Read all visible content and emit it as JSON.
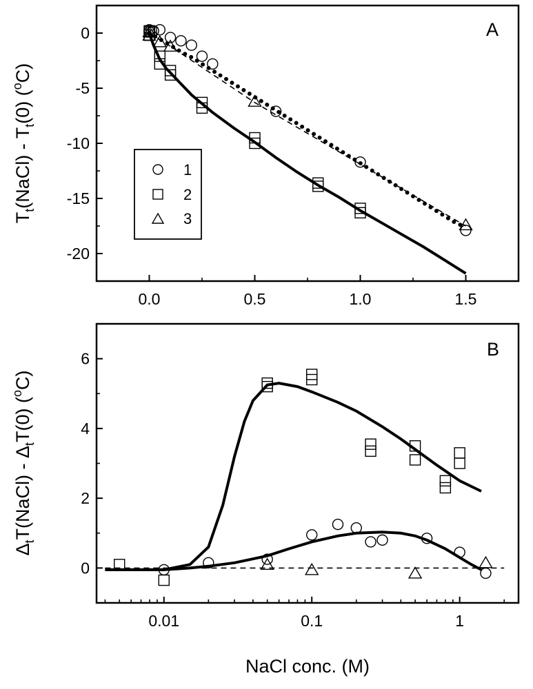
{
  "chart_data": [
    {
      "panel": "A",
      "type": "scatter",
      "ylabel": "Tt(NaCl) - Tt(0)  (oC)",
      "ylabel_parts": {
        "T1": "T",
        "s1": "t",
        "mid": "(NaCl) - T",
        "s2": "t",
        "end": "(0)  (",
        "deg": "o",
        "unit": "C)"
      },
      "xlim": [
        -0.25,
        1.75
      ],
      "ylim": [
        -22.5,
        2.5
      ],
      "x_ticks": [
        0.0,
        0.5,
        1.0,
        1.5
      ],
      "x_tick_labels": [
        "0.0",
        "0.5",
        "1.0",
        "1.5"
      ],
      "y_ticks": [
        0,
        -5,
        -10,
        -15,
        -20
      ],
      "y_tick_labels": [
        "0",
        "-5",
        "-10",
        "-15",
        "-20"
      ],
      "legend": [
        {
          "marker": "circle",
          "label": "1"
        },
        {
          "marker": "square",
          "label": "2"
        },
        {
          "marker": "triangle",
          "label": "3"
        }
      ],
      "series": [
        {
          "name": "1",
          "marker": "circle",
          "x": [
            0,
            0,
            0.02,
            0.05,
            0.1,
            0.15,
            0.2,
            0.25,
            0.3,
            0.6,
            1.0,
            1.5
          ],
          "y": [
            0.3,
            0.1,
            0.2,
            0.3,
            -0.4,
            -0.7,
            -1.1,
            -2.1,
            -2.8,
            -7.1,
            -11.7,
            -17.9
          ]
        },
        {
          "name": "2",
          "marker": "square",
          "x": [
            0,
            0,
            0.01,
            0.05,
            0.05,
            0.1,
            0.1,
            0.25,
            0.25,
            0.5,
            0.5,
            0.8,
            0.8,
            1.0,
            1.0
          ],
          "y": [
            0.2,
            -0.2,
            0.1,
            -2.1,
            -2.8,
            -3.4,
            -3.8,
            -6.3,
            -6.8,
            -9.5,
            -10.0,
            -13.6,
            -13.9,
            -15.9,
            -16.3
          ]
        },
        {
          "name": "3",
          "marker": "triangle",
          "x": [
            0,
            0,
            0.05,
            0.1,
            0.5,
            1.5
          ],
          "y": [
            0.1,
            -0.2,
            -0.8,
            -1.2,
            -6.2,
            -17.4
          ]
        }
      ],
      "fits": [
        {
          "name": "fit-1",
          "style": "dotted",
          "x": [
            0,
            0.05,
            0.1,
            0.15,
            0.2,
            0.25,
            0.3,
            0.35,
            0.4,
            0.45,
            0.5,
            0.55,
            0.6,
            0.65,
            0.7,
            0.75,
            0.8,
            0.85,
            0.9,
            0.95,
            1.0,
            1.05,
            1.1,
            1.15,
            1.2,
            1.25,
            1.3,
            1.35,
            1.4,
            1.45,
            1.5
          ],
          "y": [
            0,
            -0.55,
            -1.1,
            -1.7,
            -2.2,
            -2.8,
            -3.4,
            -4.0,
            -4.6,
            -5.2,
            -5.8,
            -6.4,
            -7.0,
            -7.6,
            -8.2,
            -8.8,
            -9.4,
            -10.0,
            -10.6,
            -11.2,
            -11.8,
            -12.4,
            -13.0,
            -13.6,
            -14.2,
            -14.8,
            -15.4,
            -16.0,
            -16.6,
            -17.2,
            -17.6
          ]
        },
        {
          "name": "fit-3",
          "style": "dashed",
          "x": [
            0,
            0.1,
            0.5,
            1.0,
            1.5
          ],
          "y": [
            0,
            -1.2,
            -6.3,
            -11.9,
            -17.5
          ]
        },
        {
          "name": "fit-2",
          "style": "solid",
          "x": [
            0,
            0.02,
            0.05,
            0.08,
            0.1,
            0.15,
            0.2,
            0.3,
            0.4,
            0.5,
            0.6,
            0.7,
            0.8,
            0.9,
            1.0,
            1.1,
            1.2,
            1.3,
            1.4,
            1.5
          ],
          "y": [
            0,
            -1.1,
            -2.4,
            -3.2,
            -3.6,
            -4.6,
            -5.6,
            -7.2,
            -8.6,
            -9.9,
            -11.3,
            -12.6,
            -13.8,
            -14.9,
            -16.1,
            -17.2,
            -18.3,
            -19.4,
            -20.6,
            -21.8
          ]
        }
      ],
      "annotation": "A"
    },
    {
      "panel": "B",
      "type": "scatter",
      "xscale": "log",
      "xlabel": "NaCl conc. (M)",
      "ylabel": "ΔtT(NaCl) - ΔtT(0)  (oC)",
      "ylabel_parts": {
        "D1": "Δ",
        "s1": "t",
        "mid": "T(NaCl) - Δ",
        "s2": "t",
        "end": "T(0)  (",
        "deg": "o",
        "unit": "C)"
      },
      "xlim": [
        0.0035,
        2.5
      ],
      "ylim": [
        -1,
        7
      ],
      "x_ticks": [
        0.01,
        0.1,
        1
      ],
      "x_tick_labels": [
        "0.01",
        "0.1",
        "1"
      ],
      "y_ticks": [
        0,
        2,
        4,
        6
      ],
      "y_tick_labels": [
        "0",
        "2",
        "4",
        "6"
      ],
      "series": [
        {
          "name": "1",
          "marker": "circle",
          "x": [
            0.01,
            0.02,
            0.05,
            0.1,
            0.15,
            0.2,
            0.25,
            0.3,
            0.6,
            1.0,
            1.5
          ],
          "y": [
            -0.05,
            0.15,
            0.25,
            0.95,
            1.25,
            1.15,
            0.75,
            0.8,
            0.85,
            0.45,
            -0.15
          ]
        },
        {
          "name": "2",
          "marker": "square",
          "x": [
            0.005,
            0.01,
            0.05,
            0.05,
            0.1,
            0.1,
            0.25,
            0.25,
            0.5,
            0.5,
            0.8,
            0.8,
            1.0,
            1.0
          ],
          "y": [
            0.1,
            -0.35,
            5.2,
            5.3,
            5.4,
            5.55,
            3.35,
            3.55,
            3.1,
            3.5,
            2.3,
            2.5,
            3.0,
            3.3
          ]
        },
        {
          "name": "3",
          "marker": "triangle",
          "x": [
            0.05,
            0.1,
            0.5,
            1.5
          ],
          "y": [
            0.1,
            -0.05,
            -0.15,
            0.15
          ]
        }
      ],
      "fits": [
        {
          "name": "baseline",
          "style": "dashed",
          "x": [
            0.004,
            2.0
          ],
          "y": [
            0,
            0
          ]
        },
        {
          "name": "fit-2",
          "style": "solid",
          "x": [
            0.004,
            0.01,
            0.015,
            0.02,
            0.025,
            0.03,
            0.035,
            0.04,
            0.05,
            0.06,
            0.08,
            0.1,
            0.15,
            0.2,
            0.3,
            0.4,
            0.5,
            0.7,
            1.0,
            1.4
          ],
          "y": [
            -0.05,
            -0.05,
            0.1,
            0.6,
            1.8,
            3.2,
            4.2,
            4.8,
            5.25,
            5.3,
            5.2,
            5.05,
            4.75,
            4.5,
            4.05,
            3.7,
            3.4,
            2.95,
            2.5,
            2.2
          ]
        },
        {
          "name": "fit-1",
          "style": "solid",
          "x": [
            0.004,
            0.01,
            0.015,
            0.02,
            0.03,
            0.05,
            0.07,
            0.1,
            0.15,
            0.2,
            0.3,
            0.4,
            0.5,
            0.6,
            0.8,
            1.0,
            1.2,
            1.4
          ],
          "y": [
            -0.05,
            -0.05,
            0.0,
            0.05,
            0.15,
            0.35,
            0.55,
            0.75,
            0.92,
            1.0,
            1.03,
            1.0,
            0.92,
            0.8,
            0.55,
            0.3,
            0.1,
            -0.05
          ]
        }
      ],
      "annotation": "B"
    }
  ]
}
